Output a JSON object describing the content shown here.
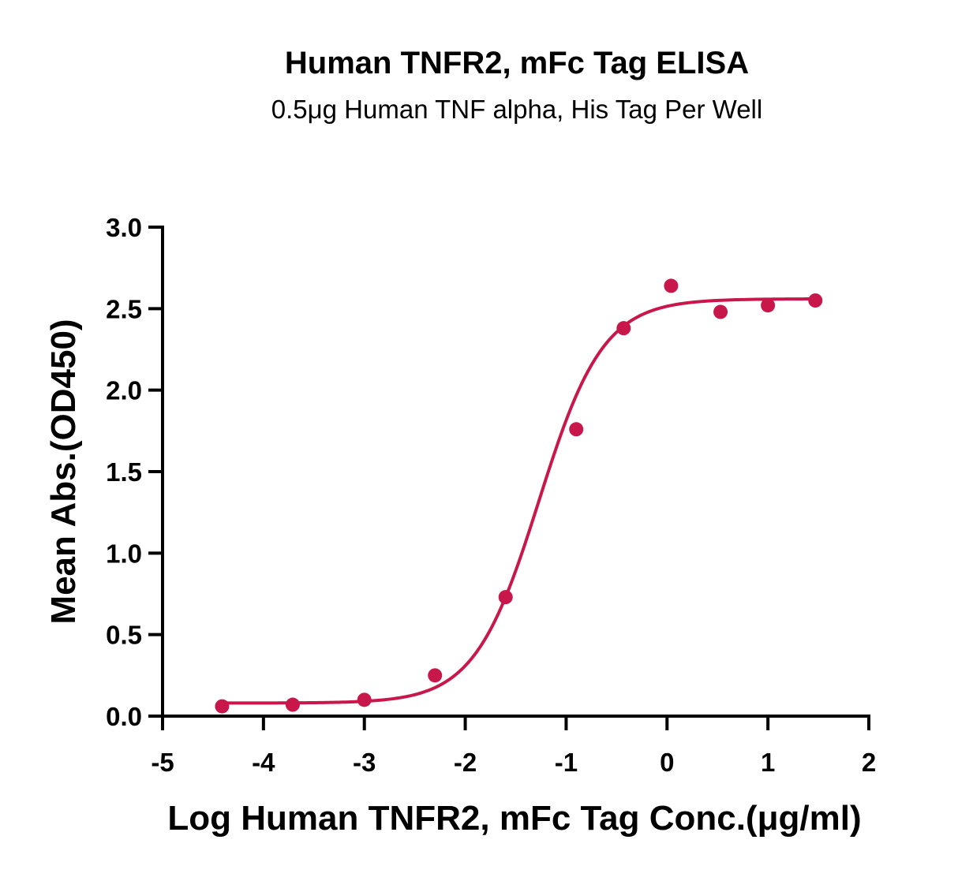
{
  "chart_data": {
    "type": "scatter",
    "title": "Human TNFR2, mFc Tag ELISA",
    "subtitle": "0.5μg Human TNF alpha, His Tag Per Well",
    "xlabel": "Log Human TNFR2, mFc Tag Conc.(μg/ml)",
    "ylabel": "Mean Abs.(OD450)",
    "xlim": [
      -5,
      2
    ],
    "ylim": [
      0,
      3.0
    ],
    "x_ticks": [
      -5,
      -4,
      -3,
      -2,
      -1,
      0,
      1,
      2
    ],
    "x_tick_labels": [
      "-5",
      "-4",
      "-3",
      "-2",
      "-1",
      "0",
      "1",
      "2"
    ],
    "y_ticks": [
      0,
      0.5,
      1.0,
      1.5,
      2.0,
      2.5,
      3.0
    ],
    "y_tick_labels": [
      "0.0",
      "0.5",
      "1.0",
      "1.5",
      "2.0",
      "2.5",
      "3.0"
    ],
    "grid": false,
    "legend": "none",
    "color": "#c8174a",
    "series": [
      {
        "x": [
          -4.41,
          -3.71,
          -3.0,
          -2.3,
          -1.6,
          -0.9,
          -0.43,
          0.04,
          0.53,
          1.0,
          1.47
        ],
        "y": [
          0.06,
          0.07,
          0.1,
          0.25,
          0.73,
          1.76,
          2.38,
          2.64,
          2.48,
          2.52,
          2.55
        ],
        "fit": {
          "model": "4PL",
          "bottom": 0.08,
          "top": 2.56,
          "logEC50": -1.27,
          "hill": 1.36
        }
      }
    ]
  }
}
